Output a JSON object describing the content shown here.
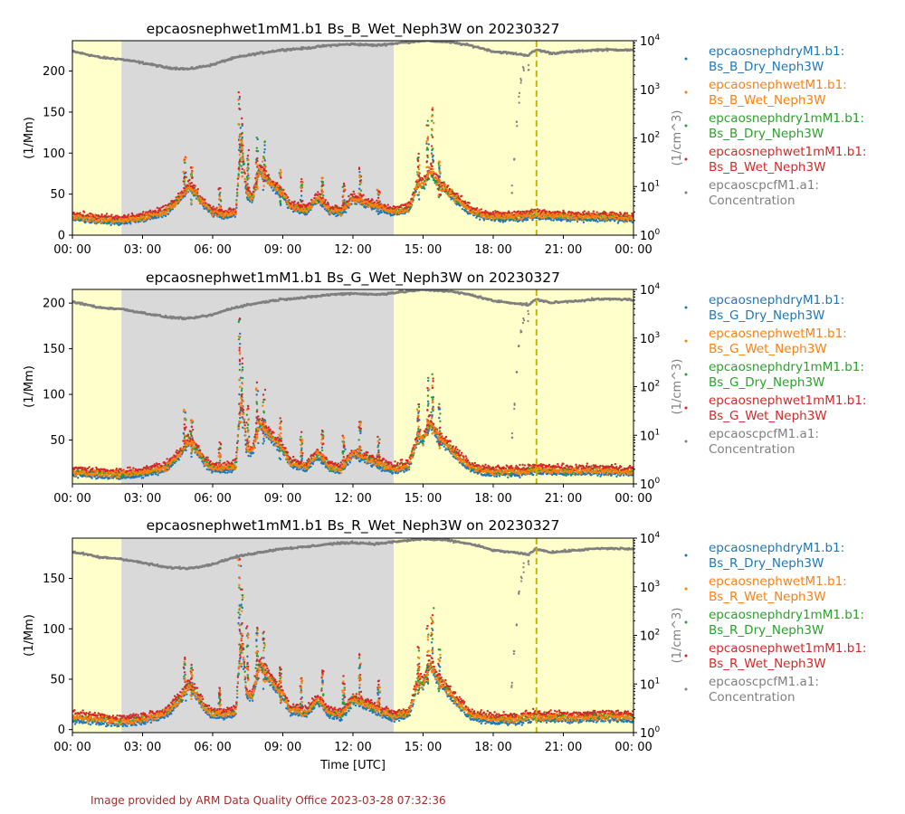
{
  "footer": "Image provided by ARM Data Quality Office 2023-03-28 07:32:36",
  "xlabel": "Time [UTC]",
  "x_tick_labels": [
    "00: 00",
    "03: 00",
    "06: 00",
    "09: 00",
    "12: 00",
    "15: 00",
    "18: 00",
    "21: 00",
    "00: 00"
  ],
  "right_ylabel": "(1/cm^3)",
  "left_ylabel": "(1/Mm)",
  "right_tick_labels": [
    {
      "base": "10",
      "exp": "0"
    },
    {
      "base": "10",
      "exp": "1"
    },
    {
      "base": "10",
      "exp": "2"
    },
    {
      "base": "10",
      "exp": "3"
    },
    {
      "base": "10",
      "exp": "4"
    }
  ],
  "colors": {
    "dry": "#1f77b4",
    "wet": "#ff7f0e",
    "dry1m": "#2ca02c",
    "wet1m": "#d62728",
    "cpc": "#7f7f7f",
    "shade_day": "#ffffcc",
    "shade_night": "#d9d9d9",
    "marker_line": "#c8b400",
    "footer": "#a52a2a"
  },
  "background_periods": [
    {
      "start_hour": 0,
      "end_hour": 2.1,
      "shade": "day"
    },
    {
      "start_hour": 2.1,
      "end_hour": 13.75,
      "shade": "night"
    },
    {
      "start_hour": 13.75,
      "end_hour": 24,
      "shade": "day"
    }
  ],
  "marker_hour": 19.85,
  "chart_data": [
    {
      "type": "scatter",
      "title": "epcaosnephwet1mM1.b1 Bs_B_Wet_Neph3W on 20230327",
      "xlabel": "",
      "ylabel": "(1/Mm)",
      "xlim_hours": [
        0,
        24
      ],
      "ylim": [
        0,
        237
      ],
      "y_ticks": [
        0,
        50,
        100,
        150,
        200
      ],
      "y2lim": [
        1,
        10000
      ],
      "y2_scale": "log",
      "legend": [
        {
          "key": "dry",
          "lines": [
            "epcaosnephdryM1.b1:",
            "Bs_B_Dry_Neph3W"
          ]
        },
        {
          "key": "wet",
          "lines": [
            "epcaosnephwetM1.b1:",
            "Bs_B_Wet_Neph3W"
          ]
        },
        {
          "key": "dry1m",
          "lines": [
            "epcaosnephdry1mM1.b1:",
            "Bs_B_Dry_Neph3W"
          ]
        },
        {
          "key": "wet1m",
          "lines": [
            "epcaosnephwet1mM1.b1:",
            "Bs_B_Wet_Neph3W"
          ]
        },
        {
          "key": "cpc",
          "lines": [
            "epcaoscpcfM1.a1:",
            "Concentration"
          ]
        }
      ],
      "scat_profile": [
        [
          0,
          22
        ],
        [
          1,
          19
        ],
        [
          2,
          17
        ],
        [
          3,
          21
        ],
        [
          4,
          28
        ],
        [
          4.6,
          45
        ],
        [
          5,
          60
        ],
        [
          5.3,
          50
        ],
        [
          5.7,
          35
        ],
        [
          6,
          28
        ],
        [
          6.5,
          25
        ],
        [
          7,
          28
        ],
        [
          7.1,
          70
        ],
        [
          7.25,
          110
        ],
        [
          7.45,
          50
        ],
        [
          7.7,
          45
        ],
        [
          8,
          80
        ],
        [
          8.3,
          70
        ],
        [
          8.6,
          60
        ],
        [
          9,
          50
        ],
        [
          9.3,
          35
        ],
        [
          10,
          30
        ],
        [
          10.5,
          45
        ],
        [
          11,
          30
        ],
        [
          11.5,
          28
        ],
        [
          12,
          45
        ],
        [
          12.5,
          40
        ],
        [
          13,
          35
        ],
        [
          13.5,
          30
        ],
        [
          13.75,
          28
        ],
        [
          14,
          30
        ],
        [
          14.4,
          32
        ],
        [
          14.8,
          65
        ],
        [
          15,
          60
        ],
        [
          15.3,
          80
        ],
        [
          15.6,
          65
        ],
        [
          16,
          55
        ],
        [
          16.5,
          42
        ],
        [
          17,
          30
        ],
        [
          17.5,
          25
        ],
        [
          18,
          22
        ],
        [
          19,
          22
        ],
        [
          19.8,
          25
        ],
        [
          20,
          24
        ],
        [
          21,
          23
        ],
        [
          22,
          22
        ],
        [
          23,
          22
        ],
        [
          24,
          20
        ]
      ],
      "scat_spikes": [
        [
          4.8,
          95
        ],
        [
          5.1,
          85
        ],
        [
          6.3,
          55
        ],
        [
          7.15,
          175
        ],
        [
          7.25,
          150
        ],
        [
          7.5,
          100
        ],
        [
          7.9,
          120
        ],
        [
          8.2,
          115
        ],
        [
          8.9,
          80
        ],
        [
          9.8,
          65
        ],
        [
          10.7,
          70
        ],
        [
          11.6,
          65
        ],
        [
          12.3,
          80
        ],
        [
          13.1,
          60
        ],
        [
          14.8,
          100
        ],
        [
          15.2,
          140
        ],
        [
          15.4,
          165
        ],
        [
          15.7,
          100
        ]
      ],
      "cpc_profile": [
        [
          0,
          6000
        ],
        [
          1.2,
          4500
        ],
        [
          2,
          4200
        ],
        [
          3,
          3500
        ],
        [
          4,
          2800
        ],
        [
          5,
          2600
        ],
        [
          6,
          3200
        ],
        [
          7,
          4500
        ],
        [
          8,
          5500
        ],
        [
          9,
          6500
        ],
        [
          10,
          7000
        ],
        [
          11,
          8000
        ],
        [
          12,
          8500
        ],
        [
          13,
          8000
        ],
        [
          14,
          9000
        ],
        [
          15,
          10000
        ],
        [
          16,
          9500
        ],
        [
          17,
          8000
        ],
        [
          18,
          6000
        ],
        [
          18.8,
          5500
        ],
        [
          19.5,
          5000
        ],
        [
          19.85,
          6500
        ],
        [
          20.5,
          5500
        ],
        [
          21.5,
          6000
        ],
        [
          22.5,
          6500
        ],
        [
          23.5,
          6500
        ],
        [
          24,
          6300
        ]
      ],
      "cpc_dips": [
        [
          18.8,
          9
        ],
        [
          18.9,
          40
        ],
        [
          19.0,
          180
        ],
        [
          19.1,
          700
        ],
        [
          19.2,
          1400
        ],
        [
          19.3,
          2500
        ],
        [
          19.5,
          3000
        ]
      ]
    },
    {
      "type": "scatter",
      "title": "epcaosnephwet1mM1.b1 Bs_G_Wet_Neph3W on 20230327",
      "xlabel": "",
      "ylabel": "(1/Mm)",
      "xlim_hours": [
        0,
        24
      ],
      "ylim": [
        2,
        215
      ],
      "y_ticks": [
        50,
        100,
        150,
        200
      ],
      "y2lim": [
        1,
        10000
      ],
      "y2_scale": "log",
      "legend": [
        {
          "key": "dry",
          "lines": [
            "epcaosnephdryM1.b1:",
            "Bs_G_Dry_Neph3W"
          ]
        },
        {
          "key": "wet",
          "lines": [
            "epcaosnephwetM1.b1:",
            "Bs_G_Wet_Neph3W"
          ]
        },
        {
          "key": "dry1m",
          "lines": [
            "epcaosnephdry1mM1.b1:",
            "Bs_G_Dry_Neph3W"
          ]
        },
        {
          "key": "wet1m",
          "lines": [
            "epcaosnephwet1mM1.b1:",
            "Bs_G_Wet_Neph3W"
          ]
        },
        {
          "key": "cpc",
          "lines": [
            "epcaoscpcfM1.a1:",
            "Concentration"
          ]
        }
      ],
      "scat_profile": [
        [
          0,
          15
        ],
        [
          1,
          13
        ],
        [
          2,
          12
        ],
        [
          3,
          14
        ],
        [
          4,
          20
        ],
        [
          4.6,
          35
        ],
        [
          5,
          50
        ],
        [
          5.3,
          40
        ],
        [
          5.7,
          25
        ],
        [
          6,
          20
        ],
        [
          6.5,
          18
        ],
        [
          7,
          22
        ],
        [
          7.1,
          60
        ],
        [
          7.25,
          100
        ],
        [
          7.45,
          40
        ],
        [
          7.7,
          38
        ],
        [
          8,
          70
        ],
        [
          8.3,
          60
        ],
        [
          8.6,
          50
        ],
        [
          9,
          40
        ],
        [
          9.3,
          25
        ],
        [
          10,
          20
        ],
        [
          10.5,
          35
        ],
        [
          11,
          20
        ],
        [
          11.5,
          18
        ],
        [
          12,
          35
        ],
        [
          12.5,
          30
        ],
        [
          13,
          25
        ],
        [
          13.5,
          20
        ],
        [
          13.75,
          18
        ],
        [
          14,
          20
        ],
        [
          14.4,
          22
        ],
        [
          14.8,
          55
        ],
        [
          15,
          50
        ],
        [
          15.3,
          70
        ],
        [
          15.6,
          55
        ],
        [
          16,
          45
        ],
        [
          16.5,
          32
        ],
        [
          17,
          20
        ],
        [
          17.5,
          16
        ],
        [
          18,
          15
        ],
        [
          19,
          15
        ],
        [
          19.8,
          18
        ],
        [
          20,
          17
        ],
        [
          21,
          16
        ],
        [
          22,
          16
        ],
        [
          23,
          16
        ],
        [
          24,
          15
        ]
      ],
      "scat_spikes": [
        [
          4.8,
          85
        ],
        [
          5.1,
          75
        ],
        [
          6.3,
          45
        ],
        [
          7.15,
          185
        ],
        [
          7.25,
          140
        ],
        [
          7.5,
          90
        ],
        [
          7.9,
          110
        ],
        [
          8.2,
          105
        ],
        [
          8.9,
          70
        ],
        [
          9.8,
          55
        ],
        [
          10.7,
          60
        ],
        [
          11.6,
          55
        ],
        [
          12.3,
          70
        ],
        [
          13.1,
          50
        ],
        [
          14.8,
          90
        ],
        [
          15.2,
          120
        ],
        [
          15.4,
          125
        ],
        [
          15.7,
          90
        ]
      ],
      "cpc_profile": [
        [
          0,
          5500
        ],
        [
          1.2,
          4200
        ],
        [
          2,
          4000
        ],
        [
          3,
          3300
        ],
        [
          4,
          2700
        ],
        [
          5,
          2500
        ],
        [
          6,
          3000
        ],
        [
          7,
          4300
        ],
        [
          8,
          5300
        ],
        [
          9,
          6300
        ],
        [
          10,
          6800
        ],
        [
          11,
          7800
        ],
        [
          12,
          8300
        ],
        [
          13,
          7800
        ],
        [
          14,
          8800
        ],
        [
          15,
          9800
        ],
        [
          16,
          9300
        ],
        [
          17,
          7800
        ],
        [
          18,
          5800
        ],
        [
          18.8,
          5300
        ],
        [
          19.5,
          4800
        ],
        [
          19.85,
          6200
        ],
        [
          20.5,
          5300
        ],
        [
          21.5,
          5800
        ],
        [
          22.5,
          6300
        ],
        [
          23.5,
          6300
        ],
        [
          24,
          6100
        ]
      ],
      "cpc_dips": [
        [
          18.8,
          9
        ],
        [
          18.9,
          40
        ],
        [
          19.0,
          180
        ],
        [
          19.1,
          700
        ],
        [
          19.2,
          1400
        ],
        [
          19.3,
          2500
        ],
        [
          19.5,
          3000
        ]
      ]
    },
    {
      "type": "scatter",
      "title": "epcaosnephwet1mM1.b1 Bs_R_Wet_Neph3W on 20230327",
      "xlabel": "Time [UTC]",
      "ylabel": "(1/Mm)",
      "xlim_hours": [
        0,
        24
      ],
      "ylim": [
        -3,
        190
      ],
      "y_ticks": [
        0,
        50,
        100,
        150
      ],
      "y2lim": [
        1,
        10000
      ],
      "y2_scale": "log",
      "legend": [
        {
          "key": "dry",
          "lines": [
            "epcaosnephdryM1.b1:",
            "Bs_R_Dry_Neph3W"
          ]
        },
        {
          "key": "wet",
          "lines": [
            "epcaosnephwetM1.b1:",
            "Bs_R_Wet_Neph3W"
          ]
        },
        {
          "key": "dry1m",
          "lines": [
            "epcaosnephdry1mM1.b1:",
            "Bs_R_Dry_Neph3W"
          ]
        },
        {
          "key": "wet1m",
          "lines": [
            "epcaosnephwet1mM1.b1:",
            "Bs_R_Wet_Neph3W"
          ]
        },
        {
          "key": "cpc",
          "lines": [
            "epcaoscpcfM1.a1:",
            "Concentration"
          ]
        }
      ],
      "scat_profile": [
        [
          0,
          12
        ],
        [
          1,
          10
        ],
        [
          2,
          8
        ],
        [
          3,
          10
        ],
        [
          4,
          16
        ],
        [
          4.6,
          30
        ],
        [
          5,
          45
        ],
        [
          5.3,
          35
        ],
        [
          5.7,
          20
        ],
        [
          6,
          16
        ],
        [
          6.5,
          14
        ],
        [
          7,
          18
        ],
        [
          7.1,
          55
        ],
        [
          7.25,
          95
        ],
        [
          7.45,
          35
        ],
        [
          7.7,
          32
        ],
        [
          8,
          65
        ],
        [
          8.3,
          55
        ],
        [
          8.6,
          45
        ],
        [
          9,
          35
        ],
        [
          9.3,
          20
        ],
        [
          10,
          16
        ],
        [
          10.5,
          30
        ],
        [
          11,
          16
        ],
        [
          11.5,
          14
        ],
        [
          12,
          30
        ],
        [
          12.5,
          25
        ],
        [
          13,
          20
        ],
        [
          13.5,
          15
        ],
        [
          13.75,
          12
        ],
        [
          14,
          14
        ],
        [
          14.4,
          16
        ],
        [
          14.8,
          50
        ],
        [
          15,
          45
        ],
        [
          15.3,
          65
        ],
        [
          15.6,
          50
        ],
        [
          16,
          40
        ],
        [
          16.5,
          26
        ],
        [
          17,
          15
        ],
        [
          17.5,
          12
        ],
        [
          18,
          10
        ],
        [
          19,
          10
        ],
        [
          19.8,
          13
        ],
        [
          20,
          12
        ],
        [
          21,
          12
        ],
        [
          22,
          12
        ],
        [
          23,
          13
        ],
        [
          24,
          12
        ]
      ],
      "scat_spikes": [
        [
          4.8,
          70
        ],
        [
          5.1,
          62
        ],
        [
          6.3,
          40
        ],
        [
          7.15,
          170
        ],
        [
          7.25,
          140
        ],
        [
          7.5,
          100
        ],
        [
          7.9,
          100
        ],
        [
          8.2,
          95
        ],
        [
          8.9,
          60
        ],
        [
          9.8,
          50
        ],
        [
          10.7,
          55
        ],
        [
          11.6,
          50
        ],
        [
          12.3,
          72
        ],
        [
          13.1,
          45
        ],
        [
          14.8,
          80
        ],
        [
          15.2,
          100
        ],
        [
          15.4,
          120
        ],
        [
          15.7,
          80
        ]
      ],
      "cpc_profile": [
        [
          0,
          5200
        ],
        [
          1.2,
          4000
        ],
        [
          2,
          3800
        ],
        [
          3,
          3100
        ],
        [
          4,
          2500
        ],
        [
          5,
          2400
        ],
        [
          6,
          2900
        ],
        [
          7,
          4100
        ],
        [
          8,
          5100
        ],
        [
          9,
          6100
        ],
        [
          10,
          6600
        ],
        [
          11,
          7600
        ],
        [
          12,
          8100
        ],
        [
          13,
          7600
        ],
        [
          14,
          8600
        ],
        [
          15,
          9600
        ],
        [
          16,
          9100
        ],
        [
          17,
          7600
        ],
        [
          18,
          5600
        ],
        [
          18.8,
          5100
        ],
        [
          19.5,
          4600
        ],
        [
          19.85,
          6000
        ],
        [
          20.5,
          5100
        ],
        [
          21.5,
          5600
        ],
        [
          22.5,
          6100
        ],
        [
          23.5,
          6100
        ],
        [
          24,
          5900
        ]
      ],
      "cpc_dips": [
        [
          18.8,
          9
        ],
        [
          18.9,
          40
        ],
        [
          19.0,
          180
        ],
        [
          19.1,
          700
        ],
        [
          19.2,
          1400
        ],
        [
          19.3,
          2500
        ],
        [
          19.5,
          3000
        ]
      ]
    }
  ]
}
